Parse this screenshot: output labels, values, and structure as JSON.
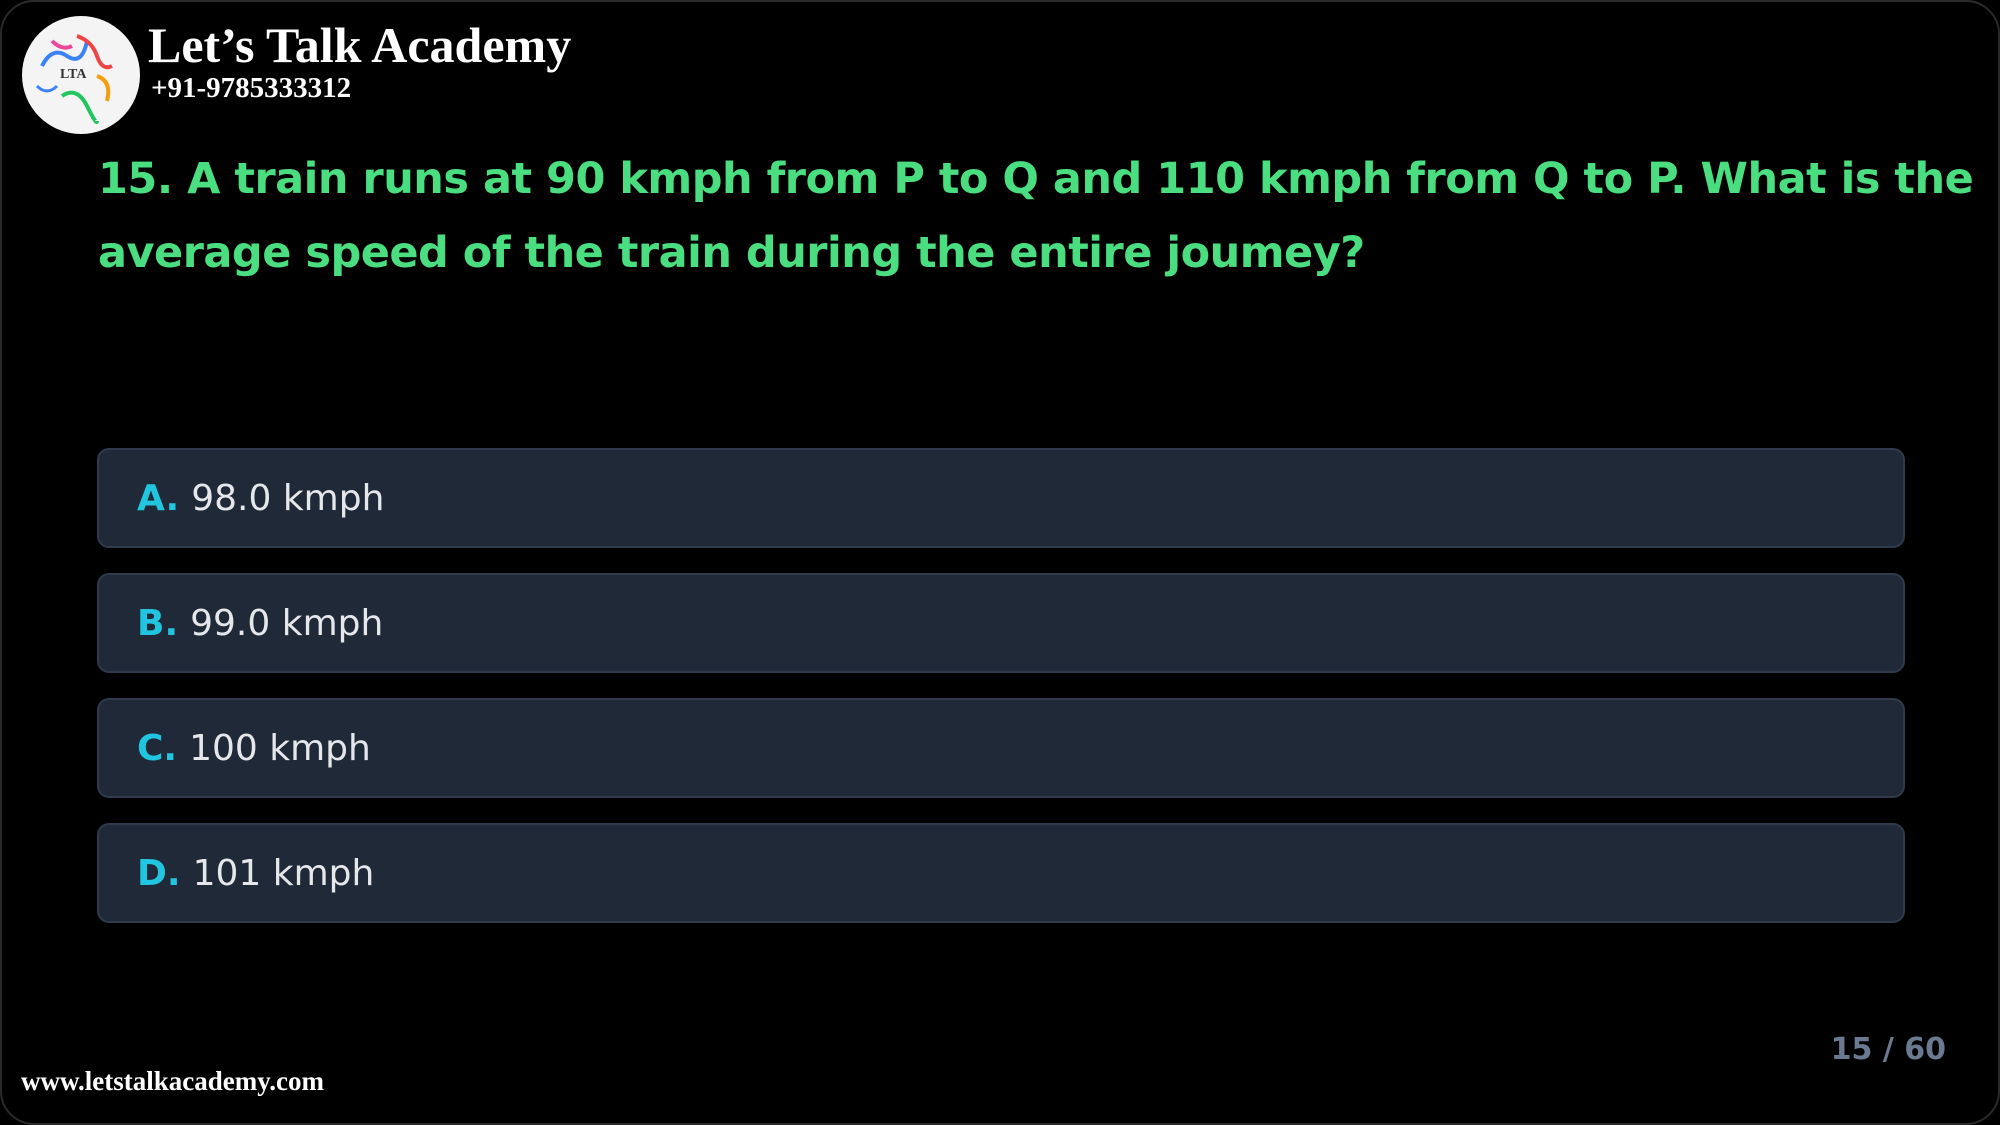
{
  "brand": {
    "name": "Let’s Talk Academy",
    "phone": "+91-9785333312",
    "logo_text": "LTA",
    "website": "www.letstalkacademy.com"
  },
  "question": {
    "text": "15. A train runs at 90 kmph from P to Q and 110 kmph from Q to P. What is the average speed of the train during the entire joumey?"
  },
  "options": [
    {
      "letter": "A.",
      "text": "98.0 kmph"
    },
    {
      "letter": "B.",
      "text": "99.0 kmph"
    },
    {
      "letter": "C.",
      "text": "100 kmph"
    },
    {
      "letter": "D.",
      "text": "101 kmph"
    }
  ],
  "progress": {
    "label": "15 / 60",
    "current": 15,
    "total": 60
  },
  "colors": {
    "question": "#4ade80",
    "option_letter": "#22c5e0",
    "option_bg": "#1f2937",
    "counter": "#6b7a90"
  }
}
